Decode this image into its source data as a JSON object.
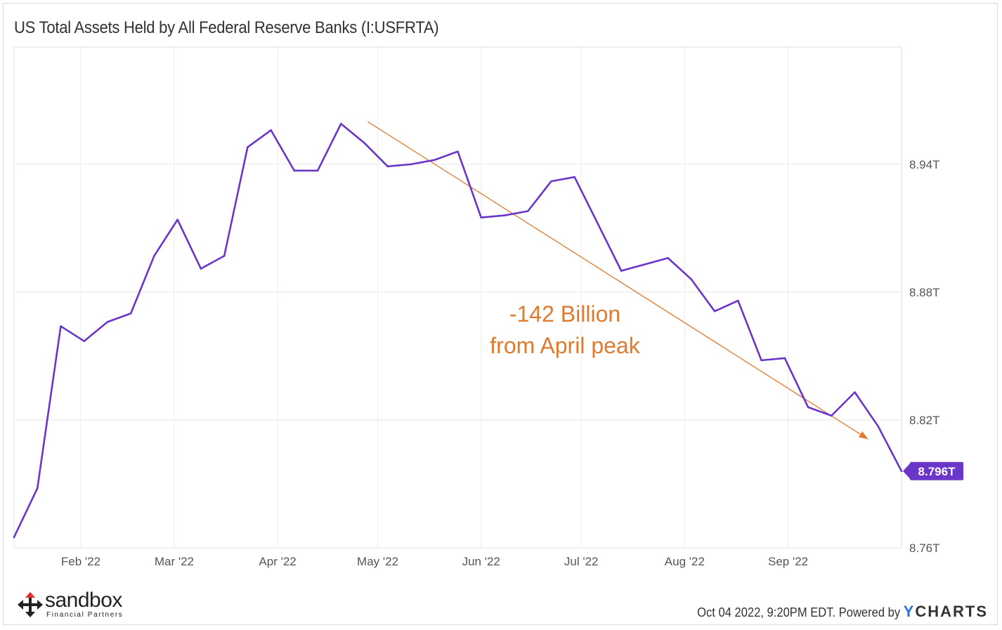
{
  "chart_data": {
    "type": "line",
    "title": "US Total Assets Held by All Federal Reserve Banks (I:USFRTA)",
    "unit": "T",
    "ylim": [
      8.76,
      8.995
    ],
    "y_ticks": [
      8.76,
      8.82,
      8.88,
      8.94
    ],
    "y_tick_labels": [
      "8.76T",
      "8.82T",
      "8.88T",
      "8.94T"
    ],
    "x_range": [
      "2022-01-12",
      "2022-09-28"
    ],
    "x_ticks": [
      {
        "date": "2022-02-01",
        "label": "Feb '22"
      },
      {
        "date": "2022-03-01",
        "label": "Mar '22"
      },
      {
        "date": "2022-04-01",
        "label": "Apr '22"
      },
      {
        "date": "2022-05-01",
        "label": "May '22"
      },
      {
        "date": "2022-06-01",
        "label": "Jun '22"
      },
      {
        "date": "2022-07-01",
        "label": "Jul '22"
      },
      {
        "date": "2022-08-01",
        "label": "Aug '22"
      },
      {
        "date": "2022-09-01",
        "label": "Sep '22"
      }
    ],
    "grid": true,
    "series": [
      {
        "color": "#6a35c9",
        "last_value_label": "8.796T",
        "points": [
          {
            "x": "2022-01-12",
            "y": 8.765
          },
          {
            "x": "2022-01-19",
            "y": 8.788
          },
          {
            "x": "2022-01-26",
            "y": 8.864
          },
          {
            "x": "2022-02-02",
            "y": 8.857
          },
          {
            "x": "2022-02-09",
            "y": 8.866
          },
          {
            "x": "2022-02-16",
            "y": 8.87
          },
          {
            "x": "2022-02-23",
            "y": 8.897
          },
          {
            "x": "2022-03-02",
            "y": 8.914
          },
          {
            "x": "2022-03-09",
            "y": 8.891
          },
          {
            "x": "2022-03-16",
            "y": 8.897
          },
          {
            "x": "2022-03-23",
            "y": 8.948
          },
          {
            "x": "2022-03-30",
            "y": 8.956
          },
          {
            "x": "2022-04-06",
            "y": 8.937
          },
          {
            "x": "2022-04-13",
            "y": 8.937
          },
          {
            "x": "2022-04-20",
            "y": 8.959
          },
          {
            "x": "2022-04-27",
            "y": 8.95
          },
          {
            "x": "2022-05-04",
            "y": 8.939
          },
          {
            "x": "2022-05-11",
            "y": 8.94
          },
          {
            "x": "2022-05-18",
            "y": 8.942
          },
          {
            "x": "2022-05-25",
            "y": 8.946
          },
          {
            "x": "2022-06-01",
            "y": 8.915
          },
          {
            "x": "2022-06-08",
            "y": 8.916
          },
          {
            "x": "2022-06-15",
            "y": 8.918
          },
          {
            "x": "2022-06-22",
            "y": 8.932
          },
          {
            "x": "2022-06-29",
            "y": 8.934
          },
          {
            "x": "2022-07-06",
            "y": 8.912
          },
          {
            "x": "2022-07-13",
            "y": 8.89
          },
          {
            "x": "2022-07-20",
            "y": 8.893
          },
          {
            "x": "2022-07-27",
            "y": 8.896
          },
          {
            "x": "2022-08-03",
            "y": 8.886
          },
          {
            "x": "2022-08-10",
            "y": 8.871
          },
          {
            "x": "2022-08-17",
            "y": 8.876
          },
          {
            "x": "2022-08-24",
            "y": 8.848
          },
          {
            "x": "2022-08-31",
            "y": 8.849
          },
          {
            "x": "2022-09-07",
            "y": 8.826
          },
          {
            "x": "2022-09-14",
            "y": 8.822
          },
          {
            "x": "2022-09-21",
            "y": 8.833
          },
          {
            "x": "2022-09-28",
            "y": 8.817
          },
          {
            "x": "2022-10-05",
            "y": 8.796
          }
        ]
      }
    ],
    "annotation": {
      "text_lines": [
        "-142 Billion",
        "from April peak"
      ],
      "color": "#e07b2e",
      "arrow_from": {
        "x": "2022-04-28",
        "y": 8.96
      },
      "arrow_to": {
        "x": "2022-09-25",
        "y": 8.811
      }
    }
  },
  "footer": {
    "timestamp": "Oct 04 2022, 9:20PM EDT. Powered by",
    "brand_y": "Y",
    "brand_rest": "CHARTS"
  },
  "logo": {
    "name": "sandbox",
    "tagline": "Financial Partners"
  }
}
